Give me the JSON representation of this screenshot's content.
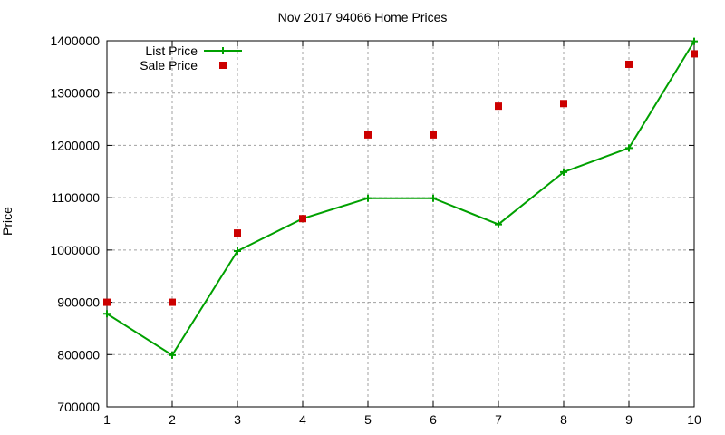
{
  "chart_data": {
    "type": "line",
    "title": "Nov 2017 94066 Home Prices",
    "xlabel": "",
    "ylabel": "Price",
    "xlim": [
      1,
      10
    ],
    "ylim": [
      700000,
      1400000
    ],
    "x": [
      1,
      2,
      3,
      4,
      5,
      6,
      7,
      8,
      9,
      10
    ],
    "x_ticks": [
      "1",
      "2",
      "3",
      "4",
      "5",
      "6",
      "7",
      "8",
      "9",
      "10"
    ],
    "y_ticks": [
      "700000",
      "800000",
      "900000",
      "1000000",
      "1100000",
      "1200000",
      "1300000",
      "1400000"
    ],
    "grid": true,
    "legend_position": "top-left",
    "series": [
      {
        "name": "List Price",
        "style": "line+cross",
        "color": "#00a000",
        "values": [
          878000,
          799000,
          998000,
          1060000,
          1099000,
          1099000,
          1049000,
          1149000,
          1195000,
          1399000
        ]
      },
      {
        "name": "Sale Price",
        "style": "square-points",
        "color": "#cc0000",
        "values": [
          900000,
          900000,
          1032500,
          1060000,
          1220000,
          1220000,
          1275000,
          1280000,
          1355000,
          1375000
        ]
      }
    ]
  }
}
